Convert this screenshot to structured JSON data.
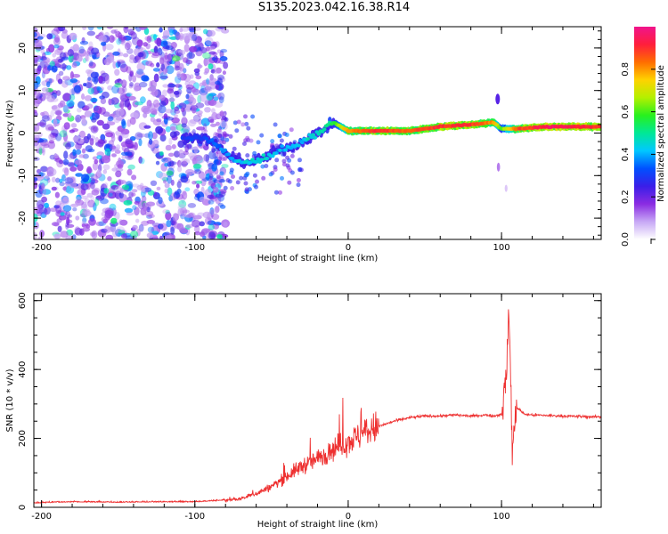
{
  "title": "S135.2023.042.16.38.R14",
  "colors": {
    "line": "#ee3030",
    "axis": "#000000",
    "colormap": [
      "#ffffff",
      "#c7a8f5",
      "#8a2be2",
      "#3a1ee8",
      "#0050ff",
      "#00c8ff",
      "#00e896",
      "#28f01e",
      "#b4f000",
      "#ffd200",
      "#ff6e00",
      "#ff1e3c",
      "#f0148c"
    ]
  },
  "chart_data": [
    {
      "type": "heatmap",
      "xlabel": "Height of straight line (km)",
      "ylabel": "Frequency (Hz)",
      "xlim": [
        -205,
        165
      ],
      "ylim": [
        -25,
        25
      ],
      "xticks": [
        -200,
        -100,
        0,
        100
      ],
      "yticks": [
        -20,
        -10,
        0,
        10,
        20
      ],
      "colorbar": {
        "label": "Normalized spectral amplitude",
        "range": [
          0,
          1
        ],
        "ticks": [
          "0.0",
          "0.2",
          "0.4",
          "0.6",
          "0.8"
        ]
      },
      "signal_trace": {
        "height_km": [
          -105,
          -95,
          -85,
          -75,
          -65,
          -55,
          -45,
          -35,
          -25,
          -15,
          -10,
          0,
          20,
          40,
          60,
          80,
          95,
          100,
          110,
          130,
          165
        ],
        "frequency_hz": [
          -1,
          -1,
          -3,
          -6,
          -7,
          -6,
          -4,
          -3,
          -1,
          1,
          2.5,
          0.5,
          0.5,
          0.5,
          1.5,
          2,
          2.5,
          1,
          1,
          1.5,
          1.5
        ],
        "amplitude": [
          0.3,
          0.3,
          0.35,
          0.4,
          0.45,
          0.45,
          0.4,
          0.4,
          0.45,
          0.5,
          0.55,
          0.8,
          0.9,
          0.85,
          0.9,
          0.9,
          0.8,
          0.6,
          0.85,
          0.95,
          0.9
        ]
      }
    },
    {
      "type": "line",
      "xlabel": "Height of straight line (km)",
      "ylabel": "SNR (10 * v/v)",
      "xlim": [
        -205,
        165
      ],
      "ylim": [
        0,
        620
      ],
      "xticks": [
        -200,
        -100,
        0,
        100
      ],
      "yticks": [
        0,
        200,
        400,
        600
      ],
      "series": [
        {
          "x": [
            -205,
            -180,
            -150,
            -120,
            -100,
            -80,
            -70,
            -60,
            -50,
            -40,
            -30,
            -20,
            -10,
            0,
            10,
            20,
            30,
            40,
            50,
            60,
            70,
            80,
            90,
            95,
            100,
            103,
            105,
            107,
            110,
            115,
            120,
            140,
            165
          ],
          "y": [
            12,
            15,
            14,
            15,
            15,
            20,
            25,
            40,
            60,
            90,
            120,
            140,
            170,
            190,
            215,
            235,
            250,
            260,
            265,
            265,
            268,
            265,
            268,
            265,
            270,
            380,
            560,
            170,
            290,
            270,
            268,
            265,
            262
          ]
        }
      ]
    }
  ]
}
